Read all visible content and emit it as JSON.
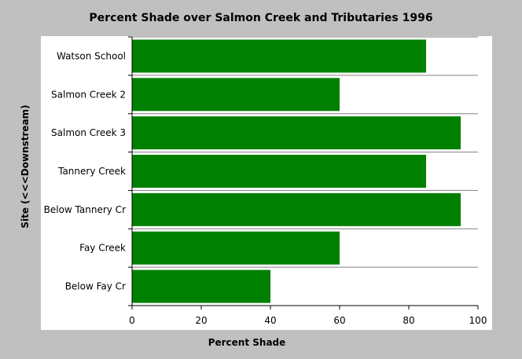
{
  "chart_data": {
    "type": "bar",
    "orientation": "horizontal",
    "title": "Percent Shade over Salmon Creek and Tributaries 1996",
    "xlabel": "Percent Shade",
    "ylabel": "Site (<<<Downstream)",
    "xlim": [
      0,
      100
    ],
    "x_ticks": [
      0,
      20,
      40,
      60,
      80,
      100
    ],
    "grid": "horizontal category separators",
    "categories": [
      "Watson School",
      "Salmon Creek 2",
      "Salmon Creek 3",
      "Tannery Creek",
      "Below Tannery Cr",
      "Fay Creek",
      "Below Fay Cr"
    ],
    "values": [
      85,
      60,
      95,
      85,
      95,
      60,
      40
    ],
    "bar_color": "#008000",
    "plot_background": "#ffffff",
    "page_background": "#c0c0c0"
  }
}
